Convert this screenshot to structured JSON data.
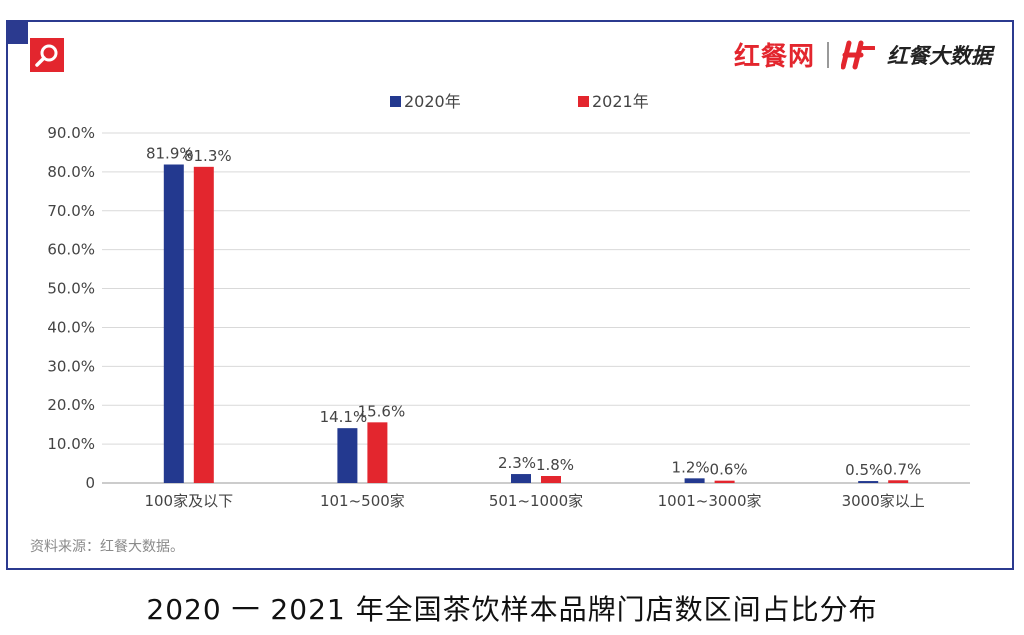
{
  "brand": {
    "name_primary": "红餐网",
    "name_secondary": "红餐大数据"
  },
  "colors": {
    "series_2020": "#23398f",
    "series_2021": "#e3262e",
    "frame": "#2b3a8f",
    "grid": "#d9d9d9"
  },
  "source_note": "资料来源：红餐大数据。",
  "caption": "2020 一 2021 年全国茶饮样本品牌门店数区间占比分布",
  "chart_data": {
    "type": "bar",
    "title": "2020 一 2021 年全国茶饮样本品牌门店数区间占比分布",
    "categories": [
      "100家及以下",
      "101~500家",
      "501~1000家",
      "1001~3000家",
      "3000家以上"
    ],
    "series": [
      {
        "name": "2020年",
        "values": [
          81.9,
          14.1,
          2.3,
          1.2,
          0.5
        ],
        "labels": [
          "81.9%",
          "14.1%",
          "2.3%",
          "1.2%",
          "0.5%"
        ]
      },
      {
        "name": "2021年",
        "values": [
          81.3,
          15.6,
          1.8,
          0.6,
          0.7
        ],
        "labels": [
          "81.3%",
          "15.6%",
          "1.8%",
          "0.6%",
          "0.7%"
        ]
      }
    ],
    "yticks": [
      0,
      10,
      20,
      30,
      40,
      50,
      60,
      70,
      80,
      90
    ],
    "ytick_labels": [
      "0",
      "10.0%",
      "20.0%",
      "30.0%",
      "40.0%",
      "50.0%",
      "60.0%",
      "70.0%",
      "80.0%",
      "90.0%"
    ],
    "ylim": [
      0,
      90
    ],
    "xlabel": "",
    "ylabel": "",
    "grid": true,
    "legend_position": "top-center"
  }
}
